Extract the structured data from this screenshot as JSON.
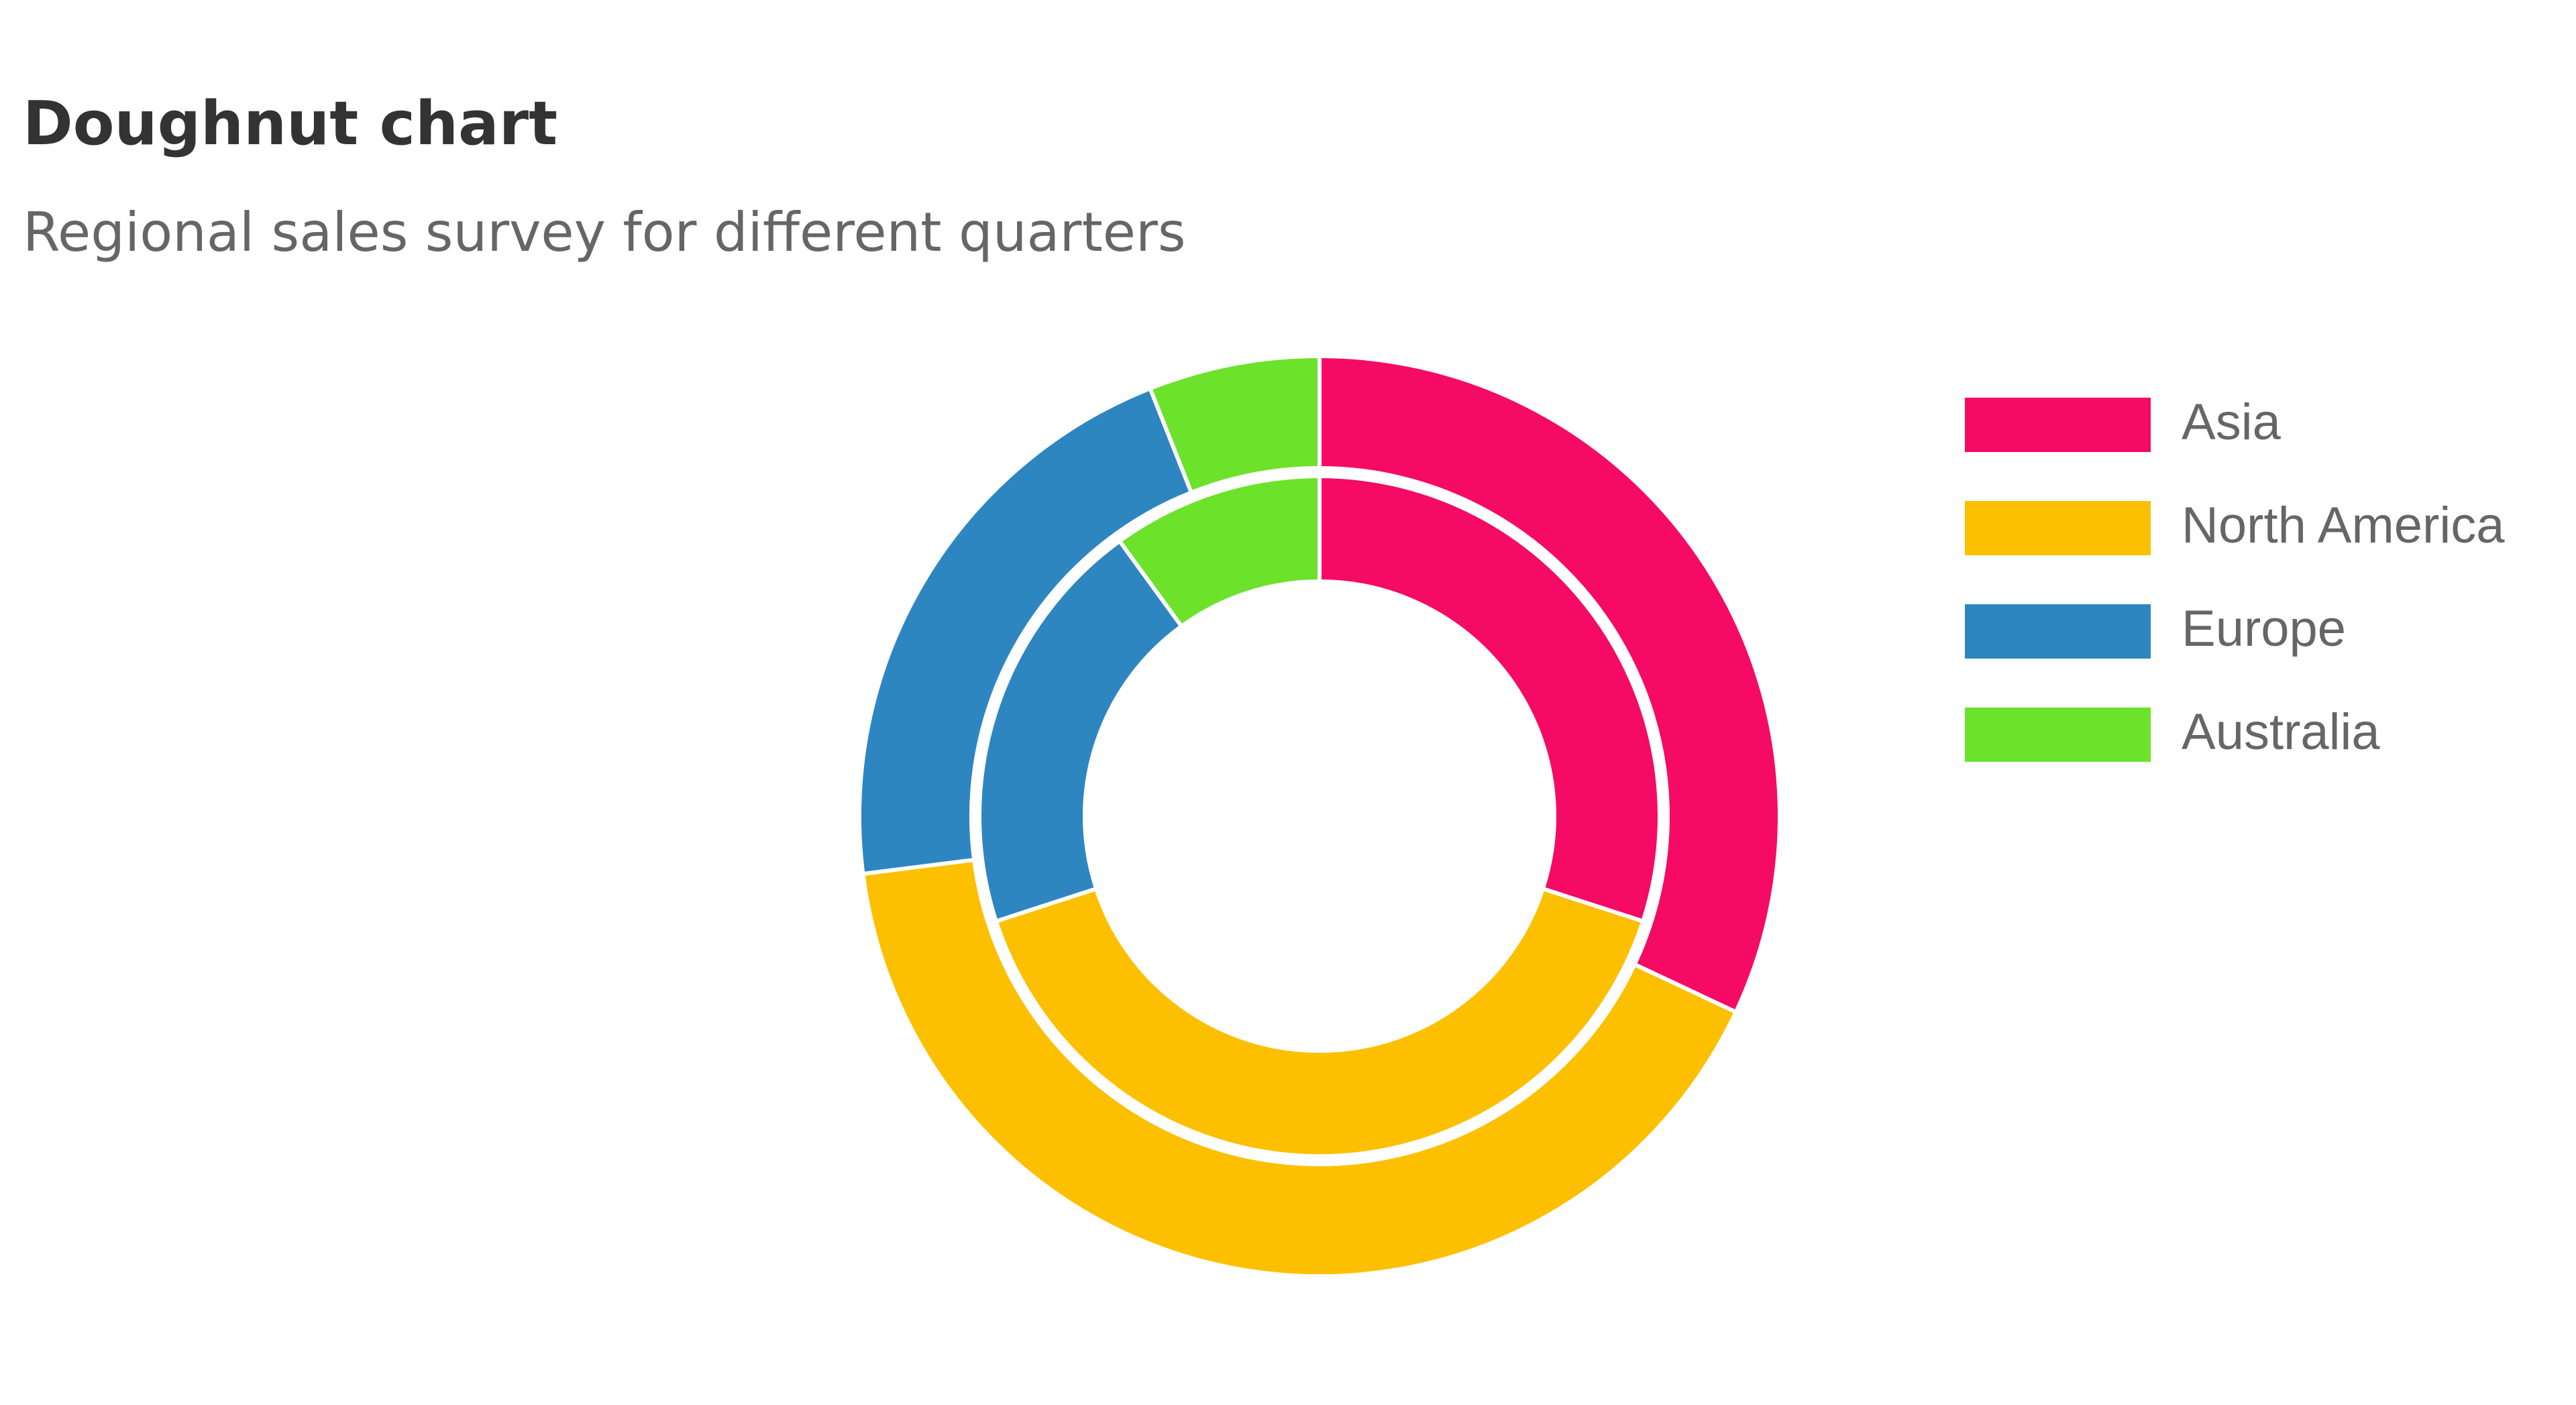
{
  "chart_data": {
    "type": "doughnut",
    "title": "Doughnut chart",
    "subtitle": "Regional sales survey for different quarters",
    "categories": [
      "Asia",
      "North America",
      "Europe",
      "Australia"
    ],
    "colors": [
      "#f50a65",
      "#fdc000",
      "#2e86c1",
      "#6ce22b"
    ],
    "series": [
      {
        "values": [
          32,
          41,
          21,
          6
        ]
      },
      {
        "values": [
          30,
          40,
          20,
          10
        ]
      }
    ]
  }
}
